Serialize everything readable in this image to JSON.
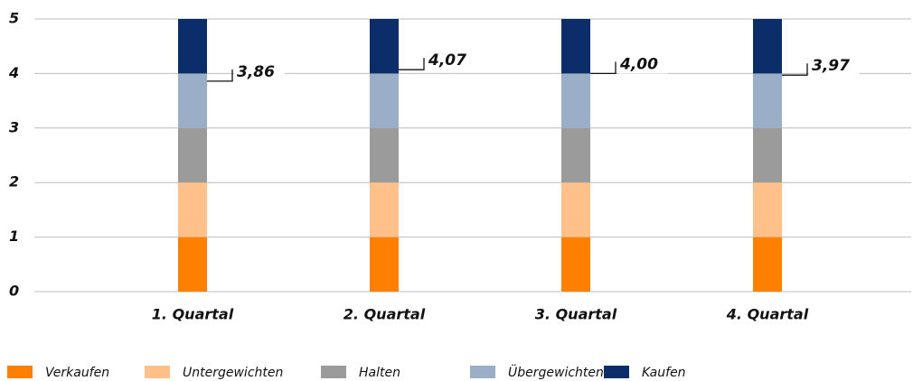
{
  "chart_data": {
    "type": "stacked_bar",
    "categories": [
      "1. Quartal",
      "2. Quartal",
      "3. Quartal",
      "4. Quartal"
    ],
    "series": [
      {
        "name": "Verkaufen",
        "color": "#ff8000",
        "values": [
          1,
          1,
          1,
          1
        ]
      },
      {
        "name": "Untergewichten",
        "color": "#ffc08a",
        "values": [
          1,
          1,
          1,
          1
        ]
      },
      {
        "name": "Halten",
        "color": "#9b9b9b",
        "values": [
          1,
          1,
          1,
          1
        ]
      },
      {
        "name": "Übergewichten",
        "color": "#9aaec8",
        "values": [
          1,
          1,
          1,
          1
        ]
      },
      {
        "name": "Kaufen",
        "color": "#0b2e6b",
        "values": [
          1,
          1,
          1,
          1
        ]
      }
    ],
    "annotations": {
      "values": [
        3.86,
        4.07,
        4.0,
        3.97
      ],
      "value_labels": [
        "3,86",
        "4,07",
        "4,00",
        "3,97"
      ]
    },
    "ylim": [
      0,
      5
    ],
    "yticks": [
      0,
      1,
      2,
      3,
      4,
      5
    ],
    "grid": true,
    "legend": "bottom"
  }
}
